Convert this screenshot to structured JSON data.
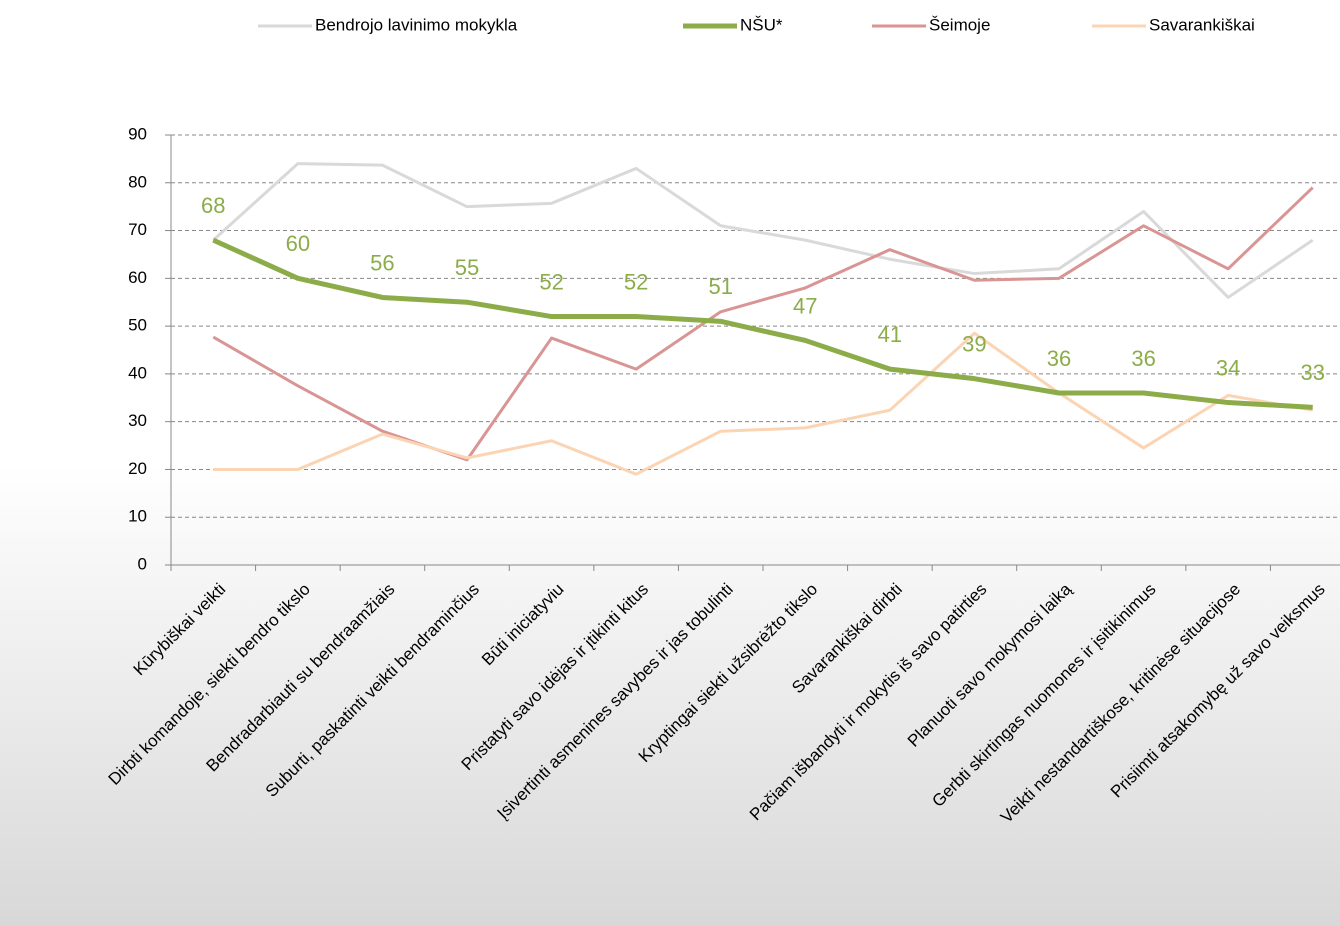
{
  "chart_data": {
    "type": "line",
    "categories": [
      "Kūrybiškai veikti",
      "Dirbti komandoje, siekti bendro tikslo",
      "Bendradarbiauti su bendraamžiais",
      "Suburti, paskatinti veikti bendraminčius",
      "Būti iniciatyviu",
      "Pristatyti savo idėjas ir įtikinti kitus",
      "Įsivertinti asmenines savybes ir jas tobulinti",
      "Kryptingai siekti užsibrėžto tikslo",
      "Savarankiškai dirbti",
      "Pačiam išbandyti ir mokytis iš savo patirties",
      "Planuoti savo mokymosi laiką",
      "Gerbti skirtingas nuomones ir įsitikinimus",
      "Veikti nestandartiškose, kritinėse situacijose",
      "Prisiimti atsakomybę už savo veiksmus"
    ],
    "series": [
      {
        "name": "Bendrojo lavinimo mokykla",
        "color": "#d9d9d9",
        "values": [
          68,
          84,
          83.7,
          75,
          75.7,
          83,
          71,
          68,
          64,
          61,
          62,
          74,
          56,
          68
        ]
      },
      {
        "name": "NŠU*",
        "color": "#8cac4a",
        "values": [
          68,
          60,
          56,
          55,
          52,
          52,
          51,
          47,
          41,
          39,
          36,
          36,
          34,
          33
        ],
        "show_labels": true
      },
      {
        "name": "Šeimoje",
        "color": "#d99594",
        "values": [
          47.7,
          37.5,
          28,
          22,
          47.5,
          41,
          53,
          58,
          66,
          59.6,
          60,
          71,
          62,
          79
        ]
      },
      {
        "name": "Savarankiškai",
        "color": "#fbd4b4",
        "values": [
          20,
          20,
          27.4,
          22.4,
          26,
          19,
          28,
          28.7,
          32.4,
          48.5,
          36,
          24.5,
          35.5,
          32.4
        ]
      }
    ],
    "ylim": [
      0,
      90
    ],
    "yticks": [
      0,
      10,
      20,
      30,
      40,
      50,
      60,
      70,
      80,
      90
    ],
    "grid": true,
    "legend": "top"
  }
}
